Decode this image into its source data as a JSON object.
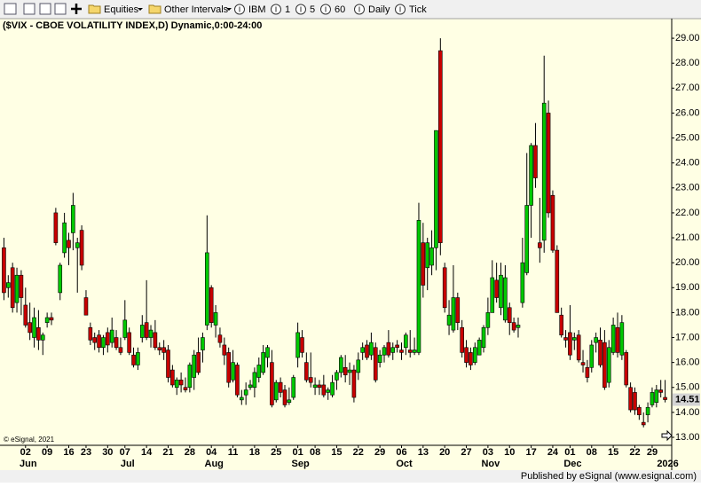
{
  "toolbar": {
    "menus": [
      "Equities",
      "Other Intervals"
    ],
    "items": [
      "IBM",
      "1",
      "5",
      "60",
      "Daily",
      "Tick"
    ]
  },
  "chart_data": {
    "type": "candlestick",
    "title": "($VIX - CBOE VOLATILITY INDEX,D) Dynamic,0:00-24:00",
    "watermark": "© eSignal, 2021",
    "footer": "Published by eSignal (www.esignal.com)",
    "up_color": "#00c800",
    "down_color": "#c80000",
    "ylim": [
      12.68,
      29.75
    ],
    "yticks": [
      {
        "value": 13,
        "label": "13.00"
      },
      {
        "value": 14,
        "label": "14.00"
      },
      {
        "value": 15,
        "label": "15.00"
      },
      {
        "value": 16,
        "label": "16.00"
      },
      {
        "value": 17,
        "label": "17.00"
      },
      {
        "value": 18,
        "label": "18.00"
      },
      {
        "value": 19,
        "label": "19.00"
      },
      {
        "value": 20,
        "label": "20.00"
      },
      {
        "value": 21,
        "label": "21.00"
      },
      {
        "value": 22,
        "label": "22.00"
      },
      {
        "value": 23,
        "label": "23.00"
      },
      {
        "value": 24,
        "label": "24.00"
      },
      {
        "value": 25,
        "label": "25.00"
      },
      {
        "value": 26,
        "label": "26.00"
      },
      {
        "value": 27,
        "label": "27.00"
      },
      {
        "value": 28,
        "label": "28.00"
      },
      {
        "value": 29,
        "label": "29.00"
      }
    ],
    "categories": [
      null,
      null,
      null,
      null,
      null,
      "02",
      null,
      null,
      null,
      null,
      "09",
      null,
      null,
      null,
      null,
      "16",
      null,
      null,
      null,
      "23",
      null,
      null,
      null,
      null,
      "30",
      null,
      null,
      null,
      "07",
      null,
      null,
      null,
      null,
      "14",
      null,
      null,
      null,
      null,
      "21",
      null,
      null,
      null,
      null,
      "28",
      null,
      null,
      null,
      null,
      "04",
      null,
      null,
      null,
      null,
      "11",
      null,
      null,
      null,
      null,
      "18",
      null,
      null,
      null,
      null,
      "25",
      null,
      null,
      null,
      null,
      "01",
      null,
      null,
      null,
      "08",
      null,
      null,
      null,
      null,
      "15",
      null,
      null,
      null,
      null,
      "22",
      null,
      null,
      null,
      null,
      "29",
      null,
      null,
      null,
      null,
      "06",
      null,
      null,
      null,
      null,
      "13",
      null,
      null,
      null,
      null,
      "20",
      null,
      null,
      null,
      null,
      "27",
      null,
      null,
      null,
      null,
      "03",
      null,
      null,
      null,
      null,
      "10",
      null,
      null,
      null,
      null,
      "17",
      null,
      null,
      null,
      null,
      "24",
      null,
      null,
      null,
      "01",
      null,
      null,
      null,
      null,
      "08",
      null,
      null,
      null,
      null,
      "15",
      null,
      null,
      null,
      null,
      "22",
      null,
      null,
      null,
      "29",
      null,
      null,
      null
    ],
    "months": [
      null,
      null,
      null,
      null,
      null,
      "Jun",
      null,
      null,
      null,
      null,
      null,
      null,
      null,
      null,
      null,
      null,
      null,
      null,
      null,
      null,
      null,
      null,
      null,
      null,
      null,
      null,
      null,
      null,
      "Jul",
      null,
      null,
      null,
      null,
      null,
      null,
      null,
      null,
      null,
      null,
      null,
      null,
      null,
      null,
      null,
      null,
      null,
      null,
      null,
      "Aug",
      null,
      null,
      null,
      null,
      null,
      null,
      null,
      null,
      null,
      null,
      null,
      null,
      null,
      null,
      null,
      null,
      null,
      null,
      null,
      "Sep",
      null,
      null,
      null,
      null,
      null,
      null,
      null,
      null,
      null,
      null,
      null,
      null,
      null,
      null,
      null,
      null,
      null,
      null,
      null,
      null,
      null,
      null,
      null,
      "Oct",
      null,
      null,
      null,
      null,
      null,
      null,
      null,
      null,
      null,
      null,
      null,
      null,
      null,
      null,
      null,
      null,
      null,
      null,
      null,
      "Nov",
      null,
      null,
      null,
      null,
      null,
      null,
      null,
      null,
      null,
      null,
      null,
      null,
      null,
      null,
      null,
      null,
      null,
      null,
      "Dec",
      null,
      null,
      null,
      null,
      null,
      null,
      null,
      null,
      null,
      null,
      null,
      null,
      null,
      null,
      null,
      null,
      null,
      null,
      null,
      null,
      null,
      "2026"
    ],
    "ohlc": [
      [
        20.6,
        21.0,
        18.5,
        18.8
      ],
      [
        19.0,
        19.5,
        18.6,
        19.2
      ],
      [
        19.8,
        20.0,
        18.0,
        18.2
      ],
      [
        18.4,
        19.8,
        18.0,
        19.5
      ],
      [
        19.5,
        19.7,
        17.9,
        18.6
      ],
      [
        18.3,
        19.0,
        17.4,
        17.5
      ],
      [
        17.6,
        18.4,
        16.9,
        17.2
      ],
      [
        17.0,
        18.2,
        16.6,
        17.8
      ],
      [
        17.4,
        18.1,
        16.5,
        16.9
      ],
      [
        16.9,
        17.2,
        16.3,
        17.1
      ],
      [
        17.6,
        18.0,
        17.4,
        17.8
      ],
      [
        17.8,
        18.0,
        17.5,
        17.7
      ],
      [
        22.0,
        22.2,
        20.7,
        20.8
      ],
      [
        18.8,
        20.0,
        18.5,
        19.9
      ],
      [
        20.4,
        22.0,
        20.2,
        21.6
      ],
      [
        20.9,
        21.2,
        19.9,
        20.6
      ],
      [
        21.2,
        22.8,
        20.5,
        22.3
      ],
      [
        20.6,
        21.0,
        18.8,
        20.8
      ],
      [
        21.3,
        21.5,
        19.7,
        19.9
      ],
      [
        18.6,
        18.9,
        17.9,
        17.9
      ],
      [
        17.4,
        17.6,
        16.7,
        16.9
      ],
      [
        17.0,
        17.2,
        16.5,
        16.8
      ],
      [
        17.1,
        17.3,
        16.4,
        16.6
      ],
      [
        16.6,
        17.1,
        16.3,
        17.0
      ],
      [
        17.2,
        17.4,
        16.4,
        16.7
      ],
      [
        16.8,
        17.8,
        16.6,
        17.3
      ],
      [
        17.0,
        17.3,
        16.5,
        16.6
      ],
      [
        16.6,
        17.0,
        16.3,
        16.4
      ],
      [
        17.0,
        18.5,
        16.9,
        17.7
      ],
      [
        17.2,
        17.4,
        16.3,
        16.4
      ],
      [
        16.3,
        16.6,
        15.8,
        15.9
      ],
      [
        15.9,
        16.6,
        15.7,
        16.4
      ],
      [
        17.0,
        17.9,
        16.8,
        17.5
      ],
      [
        17.6,
        19.3,
        16.9,
        17.0
      ],
      [
        17.0,
        17.5,
        16.6,
        17.3
      ],
      [
        17.2,
        17.7,
        16.5,
        16.6
      ],
      [
        16.6,
        16.8,
        16.3,
        16.5
      ],
      [
        16.6,
        16.9,
        16.1,
        16.4
      ],
      [
        16.5,
        16.7,
        15.2,
        15.4
      ],
      [
        15.7,
        15.9,
        15.0,
        15.1
      ],
      [
        15.0,
        15.4,
        14.7,
        15.3
      ],
      [
        15.3,
        15.6,
        14.8,
        15.1
      ],
      [
        15.0,
        15.4,
        14.8,
        14.9
      ],
      [
        15.0,
        16.0,
        14.8,
        15.9
      ],
      [
        15.4,
        16.5,
        14.9,
        16.3
      ],
      [
        16.4,
        17.0,
        15.5,
        15.6
      ],
      [
        16.5,
        17.2,
        16.0,
        17.0
      ],
      [
        17.5,
        21.9,
        17.3,
        20.4
      ],
      [
        19.0,
        19.1,
        17.4,
        17.6
      ],
      [
        17.5,
        18.3,
        17.0,
        18.0
      ],
      [
        17.1,
        17.4,
        16.6,
        16.8
      ],
      [
        16.7,
        17.0,
        15.9,
        16.3
      ],
      [
        16.4,
        16.6,
        15.0,
        15.2
      ],
      [
        15.3,
        16.5,
        15.2,
        16.0
      ],
      [
        15.9,
        16.0,
        14.6,
        14.7
      ],
      [
        14.5,
        14.9,
        14.3,
        14.6
      ],
      [
        14.7,
        15.2,
        14.3,
        14.9
      ],
      [
        15.0,
        15.3,
        14.9,
        15.1
      ],
      [
        15.0,
        15.8,
        14.6,
        15.6
      ],
      [
        15.4,
        16.2,
        15.2,
        15.9
      ],
      [
        15.6,
        16.7,
        15.5,
        16.4
      ],
      [
        16.2,
        16.7,
        15.8,
        16.6
      ],
      [
        16.0,
        16.5,
        14.2,
        14.3
      ],
      [
        14.5,
        15.3,
        14.4,
        15.2
      ],
      [
        15.2,
        15.4,
        14.6,
        14.8
      ],
      [
        14.9,
        15.1,
        14.2,
        14.3
      ],
      [
        14.4,
        15.0,
        14.3,
        14.5
      ],
      [
        14.6,
        15.5,
        14.5,
        15.4
      ],
      [
        16.2,
        17.6,
        15.8,
        17.2
      ],
      [
        17.0,
        17.3,
        16.2,
        16.4
      ],
      [
        16.0,
        16.4,
        15.2,
        15.3
      ],
      [
        15.4,
        16.4,
        15.0,
        15.2
      ],
      [
        15.0,
        15.4,
        14.7,
        15.1
      ],
      [
        15.1,
        15.3,
        14.7,
        15.0
      ],
      [
        15.1,
        15.5,
        14.6,
        14.7
      ],
      [
        14.8,
        15.0,
        14.5,
        14.9
      ],
      [
        14.7,
        15.5,
        14.6,
        15.2
      ],
      [
        15.3,
        15.7,
        14.9,
        15.6
      ],
      [
        15.6,
        16.3,
        15.4,
        16.2
      ],
      [
        15.8,
        16.3,
        15.2,
        15.5
      ],
      [
        15.6,
        16.0,
        15.1,
        15.7
      ],
      [
        15.7,
        15.9,
        14.4,
        14.6
      ],
      [
        15.6,
        16.4,
        15.3,
        16.1
      ],
      [
        16.4,
        16.8,
        16.1,
        16.6
      ],
      [
        16.7,
        16.9,
        16.1,
        16.2
      ],
      [
        16.3,
        17.2,
        16.1,
        16.8
      ],
      [
        16.6,
        16.8,
        15.2,
        15.3
      ],
      [
        16.0,
        16.5,
        15.8,
        16.3
      ],
      [
        16.3,
        16.7,
        16.0,
        16.6
      ],
      [
        16.8,
        17.3,
        16.2,
        16.3
      ],
      [
        16.4,
        16.8,
        16.1,
        16.6
      ],
      [
        16.7,
        16.9,
        16.4,
        16.6
      ],
      [
        16.5,
        16.8,
        16.1,
        16.4
      ],
      [
        16.6,
        17.2,
        16.3,
        17.1
      ],
      [
        16.5,
        17.3,
        16.2,
        16.4
      ],
      [
        16.4,
        17.0,
        16.3,
        16.5
      ],
      [
        16.4,
        22.4,
        16.3,
        21.7
      ],
      [
        20.8,
        21.6,
        18.6,
        19.1
      ],
      [
        19.8,
        21.0,
        18.9,
        20.8
      ],
      [
        19.9,
        21.3,
        19.5,
        20.6
      ],
      [
        20.6,
        25.3,
        19.7,
        25.3
      ],
      [
        28.5,
        29.0,
        20.3,
        20.8
      ],
      [
        19.8,
        20.0,
        18.0,
        18.2
      ],
      [
        17.5,
        18.5,
        17.1,
        17.9
      ],
      [
        17.3,
        19.9,
        17.2,
        18.6
      ],
      [
        18.6,
        18.8,
        17.3,
        17.6
      ],
      [
        17.4,
        17.7,
        16.2,
        16.4
      ],
      [
        16.6,
        16.9,
        15.8,
        16.0
      ],
      [
        16.4,
        16.6,
        15.7,
        15.9
      ],
      [
        16.0,
        16.8,
        15.9,
        16.6
      ],
      [
        16.3,
        17.0,
        16.3,
        16.9
      ],
      [
        16.6,
        17.5,
        16.4,
        17.4
      ],
      [
        17.4,
        18.6,
        17.1,
        18.0
      ],
      [
        18.0,
        20.1,
        18.0,
        19.4
      ],
      [
        19.3,
        20.0,
        18.4,
        18.6
      ],
      [
        18.2,
        20.0,
        17.9,
        19.5
      ],
      [
        17.7,
        19.9,
        17.6,
        19.4
      ],
      [
        18.2,
        18.4,
        17.1,
        17.6
      ],
      [
        17.6,
        17.8,
        17.2,
        17.3
      ],
      [
        17.4,
        17.8,
        17.0,
        17.5
      ],
      [
        18.4,
        21.0,
        18.2,
        20.0
      ],
      [
        19.6,
        24.4,
        19.5,
        22.3
      ],
      [
        22.3,
        24.8,
        21.0,
        24.7
      ],
      [
        24.7,
        25.6,
        23.0,
        23.4
      ],
      [
        20.8,
        22.6,
        20.0,
        20.6
      ],
      [
        20.9,
        28.3,
        20.4,
        26.4
      ],
      [
        26.0,
        26.5,
        21.8,
        22.0
      ],
      [
        22.7,
        22.9,
        20.4,
        20.5
      ],
      [
        20.5,
        20.7,
        18.0,
        18.0
      ],
      [
        17.9,
        18.2,
        17.0,
        17.1
      ],
      [
        17.0,
        17.3,
        16.6,
        16.9
      ],
      [
        17.2,
        18.3,
        16.1,
        16.3
      ],
      [
        16.9,
        17.2,
        16.5,
        17.0
      ],
      [
        17.1,
        17.3,
        16.0,
        16.1
      ],
      [
        16.0,
        16.5,
        15.6,
        15.9
      ],
      [
        15.8,
        16.1,
        15.2,
        15.4
      ],
      [
        15.8,
        16.9,
        15.6,
        16.7
      ],
      [
        16.8,
        17.2,
        16.4,
        17.0
      ],
      [
        16.9,
        17.4,
        15.8,
        15.9
      ],
      [
        16.8,
        17.3,
        14.9,
        15.0
      ],
      [
        15.2,
        16.9,
        15.0,
        16.6
      ],
      [
        16.4,
        17.8,
        16.3,
        17.5
      ],
      [
        17.4,
        18.0,
        16.2,
        16.4
      ],
      [
        16.3,
        17.9,
        16.1,
        17.6
      ],
      [
        16.4,
        16.5,
        15.0,
        15.1
      ],
      [
        15.0,
        15.2,
        14.0,
        14.1
      ],
      [
        14.8,
        15.0,
        13.9,
        14.1
      ],
      [
        14.2,
        14.3,
        13.7,
        13.9
      ],
      [
        13.6,
        14.0,
        13.4,
        13.5
      ],
      [
        13.9,
        14.4,
        13.6,
        14.2
      ],
      [
        14.3,
        15.0,
        14.2,
        14.8
      ],
      [
        14.4,
        15.1,
        14.2,
        14.9
      ],
      [
        14.9,
        15.3,
        14.6,
        14.8
      ],
      [
        14.6,
        15.3,
        14.4,
        14.51
      ]
    ]
  }
}
